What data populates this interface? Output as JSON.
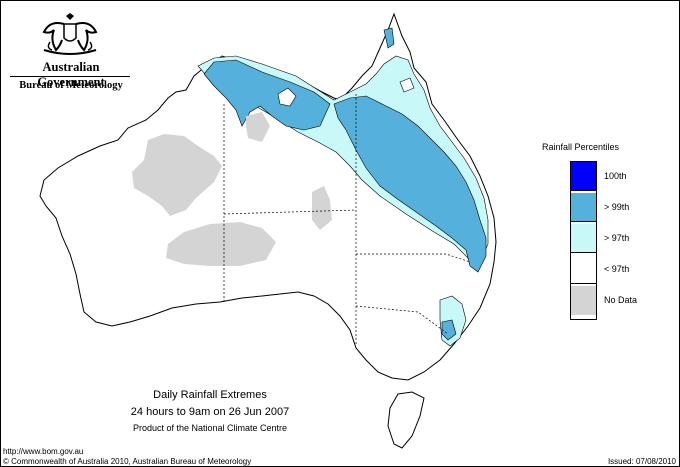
{
  "header": {
    "government": "Australian Government",
    "bureau": "Bureau of Meteorology"
  },
  "legend": {
    "title": "Rainfall Percentiles",
    "items": [
      {
        "label": "100th",
        "color": "#0000ff"
      },
      {
        "label": "> 99th",
        "color": "#55b0dc"
      },
      {
        "label": "> 97th",
        "color": "#c8f8f8"
      },
      {
        "label": "< 97th",
        "color": "#ffffff"
      },
      {
        "label": "No Data",
        "color": "#d4d4d4"
      }
    ]
  },
  "map": {
    "title": "Daily Rainfall Extremes",
    "subtitle": "24 hours to 9am on 26 Jun 2007",
    "credit": "Product of the National Climate Centre",
    "colors": {
      "land": "#ffffff",
      "no_data": "#d4d4d4",
      "above_97": "#c8f8f8",
      "above_99": "#55b0dc",
      "outline": "#000000"
    }
  },
  "footer": {
    "url": "http://www.bom.gov.au",
    "copyright": "© Commonwealth of Australia 2010, Australian Bureau of Meteorology",
    "issued": "Issued: 07/08/2010"
  }
}
